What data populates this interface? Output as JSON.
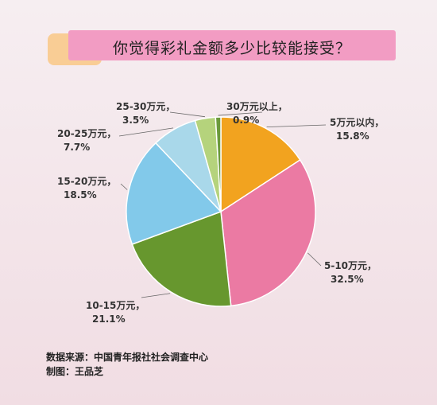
{
  "chart_data": {
    "type": "pie",
    "title": "你觉得彩礼金额多少比较能接受？",
    "slices": [
      {
        "name": "5万元以内",
        "value": 15.8,
        "label": "15.8%",
        "color": "#f2a31f"
      },
      {
        "name": "5-10万元",
        "value": 32.5,
        "label": "32.5%",
        "color": "#eb7aa3"
      },
      {
        "name": "10-15万元",
        "value": 21.1,
        "label": "21.1%",
        "color": "#67972e"
      },
      {
        "name": "15-20万元",
        "value": 18.5,
        "label": "18.5%",
        "color": "#82c9ea"
      },
      {
        "name": "20-25万元",
        "value": 7.7,
        "label": "7.7%",
        "color": "#a9d8ea"
      },
      {
        "name": "25-30万元",
        "value": 3.5,
        "label": "3.5%",
        "color": "#b5d37c"
      },
      {
        "name": "30万元以上",
        "value": 0.9,
        "label": "0.9%",
        "color": "#6b9a3c"
      }
    ],
    "legend": "none"
  },
  "footer": {
    "source": "数据来源：中国青年报社社会调查中心",
    "author": "制图：王品芝"
  }
}
